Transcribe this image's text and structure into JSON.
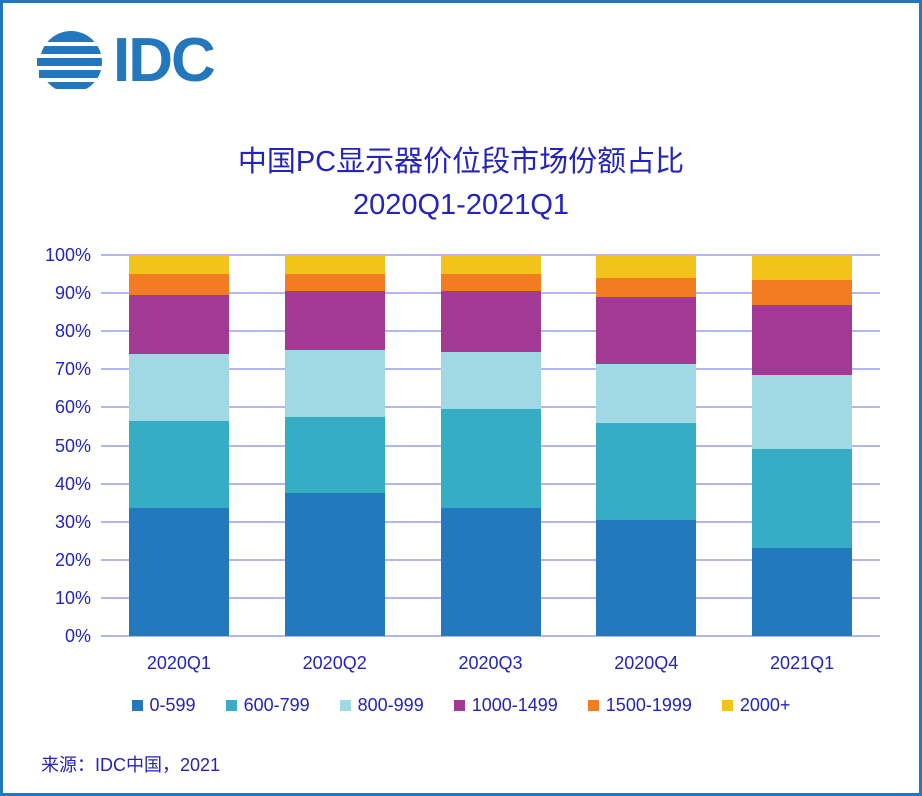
{
  "logo": {
    "text": "IDC"
  },
  "title": {
    "line1": "中国PC显示器价位段市场份额占比",
    "line2": "2020Q1-2021Q1"
  },
  "source": "来源：IDC中国，2021",
  "colors": {
    "brand": "#2377BD",
    "text": "#2323BE",
    "grid": "#B4B7EB",
    "border": "#2377BD"
  },
  "chart_data": {
    "type": "bar",
    "stacked": true,
    "title": "中国PC显示器价位段市场份额占比",
    "subtitle": "2020Q1-2021Q1",
    "categories": [
      "2020Q1",
      "2020Q2",
      "2020Q3",
      "2020Q4",
      "2021Q1"
    ],
    "series": [
      {
        "name": "0-599",
        "color": "#2478BC",
        "values": [
          33.5,
          37.5,
          33.5,
          30.5,
          23.0
        ]
      },
      {
        "name": "600-799",
        "color": "#37ACC5",
        "values": [
          23.0,
          20.0,
          26.0,
          25.5,
          26.0
        ]
      },
      {
        "name": "800-999",
        "color": "#A0D9E4",
        "values": [
          17.5,
          17.5,
          15.0,
          15.5,
          19.5
        ]
      },
      {
        "name": "1000-1499",
        "color": "#A23A94",
        "values": [
          15.5,
          15.5,
          16.0,
          17.5,
          18.5
        ]
      },
      {
        "name": "1500-1999",
        "color": "#F17C21",
        "values": [
          5.5,
          4.5,
          4.5,
          5.0,
          6.5
        ]
      },
      {
        "name": "2000+",
        "color": "#F2C31B",
        "values": [
          5.0,
          5.0,
          5.0,
          6.0,
          6.5
        ]
      }
    ],
    "y_ticks": [
      "0%",
      "10%",
      "20%",
      "30%",
      "40%",
      "50%",
      "60%",
      "70%",
      "80%",
      "90%",
      "100%"
    ],
    "ylim": [
      0,
      100
    ],
    "unit": "percent",
    "grid": true,
    "legend_position": "bottom"
  }
}
